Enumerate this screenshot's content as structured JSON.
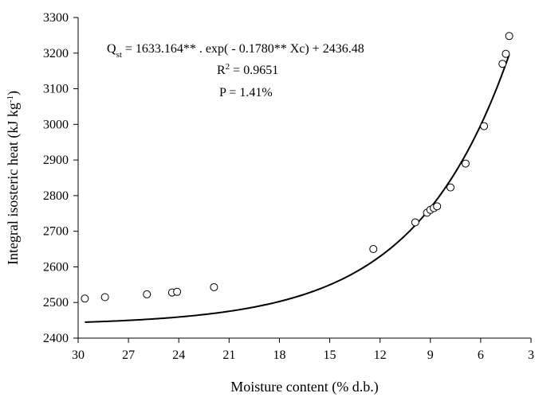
{
  "chart_data": {
    "type": "scatter",
    "xlabel": "Moisture content (% d.b.)",
    "ylabel_main": "Integral isosteric heat (kJ kg",
    "ylabel_exp": "-1",
    "ylabel_end": ")",
    "xlim": [
      30,
      3
    ],
    "ylim": [
      2400,
      3300
    ],
    "x_ticks": [
      30,
      27,
      24,
      21,
      18,
      15,
      12,
      9,
      6,
      3
    ],
    "y_ticks": [
      2400,
      2500,
      2600,
      2700,
      2800,
      2900,
      3000,
      3100,
      3200,
      3300
    ],
    "grid": false,
    "annotations": {
      "equation_prefix": "Q",
      "equation_sub": "st",
      "equation_body": " = 1633.164** . exp( - 0.1780** Xc) + 2436.48",
      "r2_prefix": "R",
      "r2_sup": "2",
      "r2_body": " = 0.9651",
      "p_text": "P = 1.41%"
    },
    "fit": {
      "a": 1633.164,
      "b": 0.178,
      "c": 2436.48
    },
    "series": [
      {
        "marker": "open-circle",
        "x": [
          29.6,
          28.4,
          25.9,
          24.4,
          24.1,
          21.9,
          12.4,
          9.9,
          9.2,
          9.0,
          8.8,
          8.6,
          7.8,
          6.9,
          5.8,
          4.7,
          4.5,
          4.3
        ],
        "y": [
          2511,
          2515,
          2523,
          2528,
          2530,
          2543,
          2650,
          2725,
          2752,
          2760,
          2765,
          2770,
          2823,
          2890,
          2995,
          3170,
          3198,
          3248
        ]
      }
    ]
  }
}
